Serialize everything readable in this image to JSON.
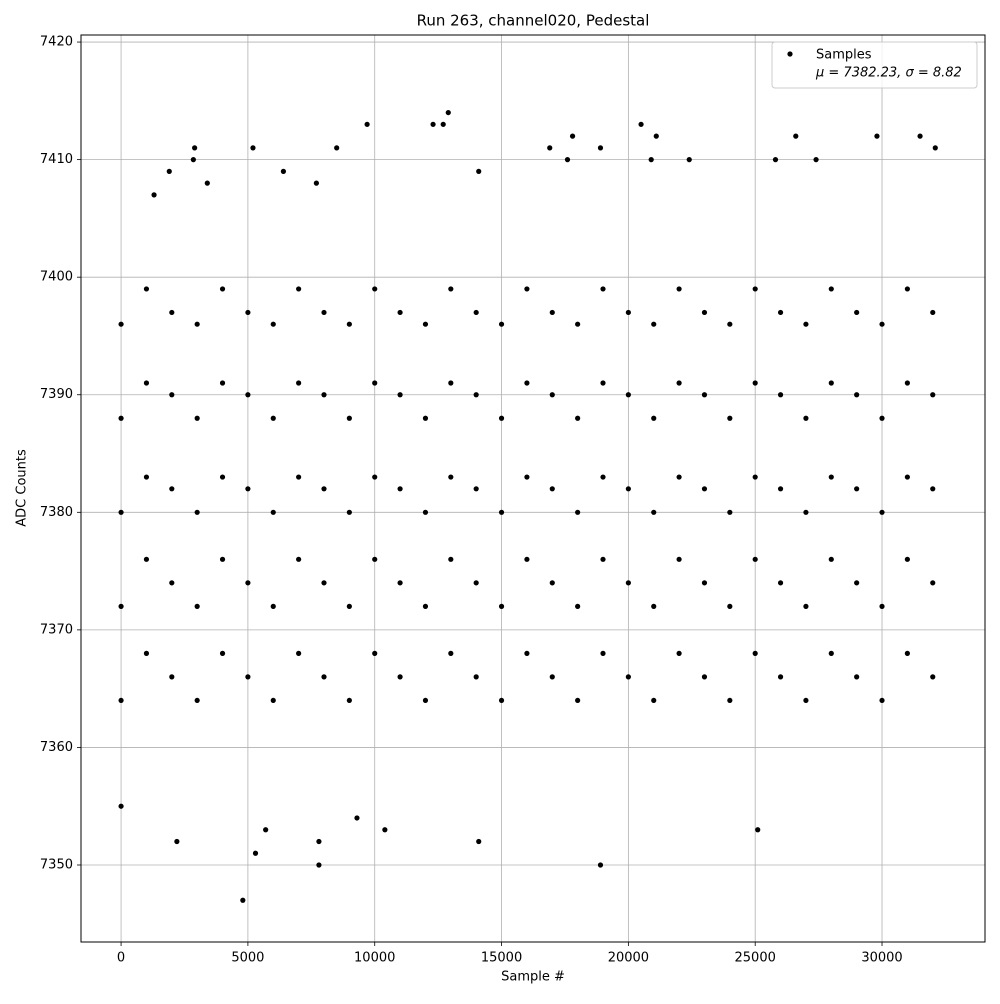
{
  "chart_data": {
    "type": "scatter",
    "title": "Run 263, channel020, Pedestal",
    "x_label": "Sample #",
    "y_label": "ADC Counts",
    "legend_stats": "μ = 7382.23, σ = 8.82",
    "legend_position": "upper right",
    "grid": true,
    "xlim": [
      -1580,
      34060
    ],
    "ylim": [
      7343.45,
      7420.6
    ],
    "xticks": [
      0,
      5000,
      10000,
      15000,
      20000,
      25000,
      30000
    ],
    "yticks": [
      7350,
      7360,
      7370,
      7380,
      7390,
      7400,
      7410,
      7420
    ],
    "x": [
      0,
      2200,
      4800,
      5300,
      5700,
      7800,
      7800,
      18900,
      25100,
      9300,
      10400,
      14100,
      2900,
      2850,
      5200,
      8500,
      9700,
      12300,
      12700,
      12900,
      16900,
      17800,
      18900,
      20500,
      21100,
      22400,
      26600,
      29800,
      31500,
      32100,
      27400,
      25800,
      17600,
      20900,
      1900,
      6400,
      14100,
      3400,
      7700,
      1300,
      0,
      0,
      0,
      0,
      0,
      1000,
      1000,
      1000,
      1000,
      1000,
      2000,
      2000,
      2000,
      2000,
      2000,
      3000,
      3000,
      3000,
      3000,
      3000,
      4000,
      4000,
      4000,
      4000,
      4000,
      5000,
      5000,
      5000,
      5000,
      5000,
      6000,
      6000,
      6000,
      6000,
      6000,
      7000,
      7000,
      7000,
      7000,
      7000,
      8000,
      8000,
      8000,
      8000,
      8000,
      9000,
      9000,
      9000,
      9000,
      9000,
      10000,
      10000,
      10000,
      10000,
      10000,
      11000,
      11000,
      11000,
      11000,
      11000,
      12000,
      12000,
      12000,
      12000,
      12000,
      13000,
      13000,
      13000,
      13000,
      13000,
      14000,
      14000,
      14000,
      14000,
      14000,
      15000,
      15000,
      15000,
      15000,
      15000,
      16000,
      16000,
      16000,
      16000,
      16000,
      17000,
      17000,
      17000,
      17000,
      17000,
      18000,
      18000,
      18000,
      18000,
      18000,
      19000,
      19000,
      19000,
      19000,
      19000,
      20000,
      20000,
      20000,
      20000,
      20000,
      21000,
      21000,
      21000,
      21000,
      21000,
      22000,
      22000,
      22000,
      22000,
      22000,
      23000,
      23000,
      23000,
      23000,
      23000,
      24000,
      24000,
      24000,
      24000,
      24000,
      25000,
      25000,
      25000,
      25000,
      25000,
      26000,
      26000,
      26000,
      26000,
      26000,
      27000,
      27000,
      27000,
      27000,
      27000,
      28000,
      28000,
      28000,
      28000,
      28000,
      29000,
      29000,
      29000,
      29000,
      29000,
      30000,
      30000,
      30000,
      30000,
      30000,
      31000,
      31000,
      31000,
      31000,
      31000,
      32000,
      32000,
      32000,
      32000,
      32000
    ],
    "series": [
      {
        "name": "Samples",
        "color": "#000000",
        "values": [
          7355,
          7352,
          7347,
          7351,
          7353,
          7350,
          7352,
          7350,
          7353,
          7354,
          7353,
          7352,
          7411,
          7410,
          7411,
          7411,
          7413,
          7413,
          7413,
          7414,
          7411,
          7412,
          7411,
          7413,
          7412,
          7410,
          7412,
          7412,
          7412,
          7411,
          7410,
          7410,
          7410,
          7410,
          7409,
          7409,
          7409,
          7408,
          7408,
          7407,
          7364,
          7372,
          7380,
          7388,
          7396,
          7368,
          7376,
          7383,
          7391,
          7399,
          7366,
          7374,
          7382,
          7390,
          7397,
          7364,
          7372,
          7380,
          7388,
          7396,
          7368,
          7376,
          7383,
          7391,
          7399,
          7366,
          7374,
          7382,
          7390,
          7397,
          7364,
          7372,
          7380,
          7388,
          7396,
          7368,
          7376,
          7383,
          7391,
          7399,
          7366,
          7374,
          7382,
          7390,
          7397,
          7364,
          7372,
          7380,
          7388,
          7396,
          7368,
          7376,
          7383,
          7391,
          7399,
          7366,
          7374,
          7382,
          7390,
          7397,
          7364,
          7372,
          7380,
          7388,
          7396,
          7368,
          7376,
          7383,
          7391,
          7399,
          7366,
          7374,
          7382,
          7390,
          7397,
          7364,
          7372,
          7380,
          7388,
          7396,
          7368,
          7376,
          7383,
          7391,
          7399,
          7366,
          7374,
          7382,
          7390,
          7397,
          7364,
          7372,
          7380,
          7388,
          7396,
          7368,
          7376,
          7383,
          7391,
          7399,
          7366,
          7374,
          7382,
          7390,
          7397,
          7364,
          7372,
          7380,
          7388,
          7396,
          7368,
          7376,
          7383,
          7391,
          7399,
          7366,
          7374,
          7382,
          7390,
          7397,
          7364,
          7372,
          7380,
          7388,
          7396,
          7368,
          7376,
          7383,
          7391,
          7399,
          7366,
          7374,
          7382,
          7390,
          7397,
          7364,
          7372,
          7380,
          7388,
          7396,
          7368,
          7376,
          7383,
          7391,
          7399,
          7366,
          7374,
          7382,
          7390,
          7397,
          7364,
          7372,
          7380,
          7388,
          7396,
          7368,
          7376,
          7383,
          7391,
          7399,
          7366,
          7374,
          7382,
          7390,
          7397
        ]
      }
    ]
  }
}
